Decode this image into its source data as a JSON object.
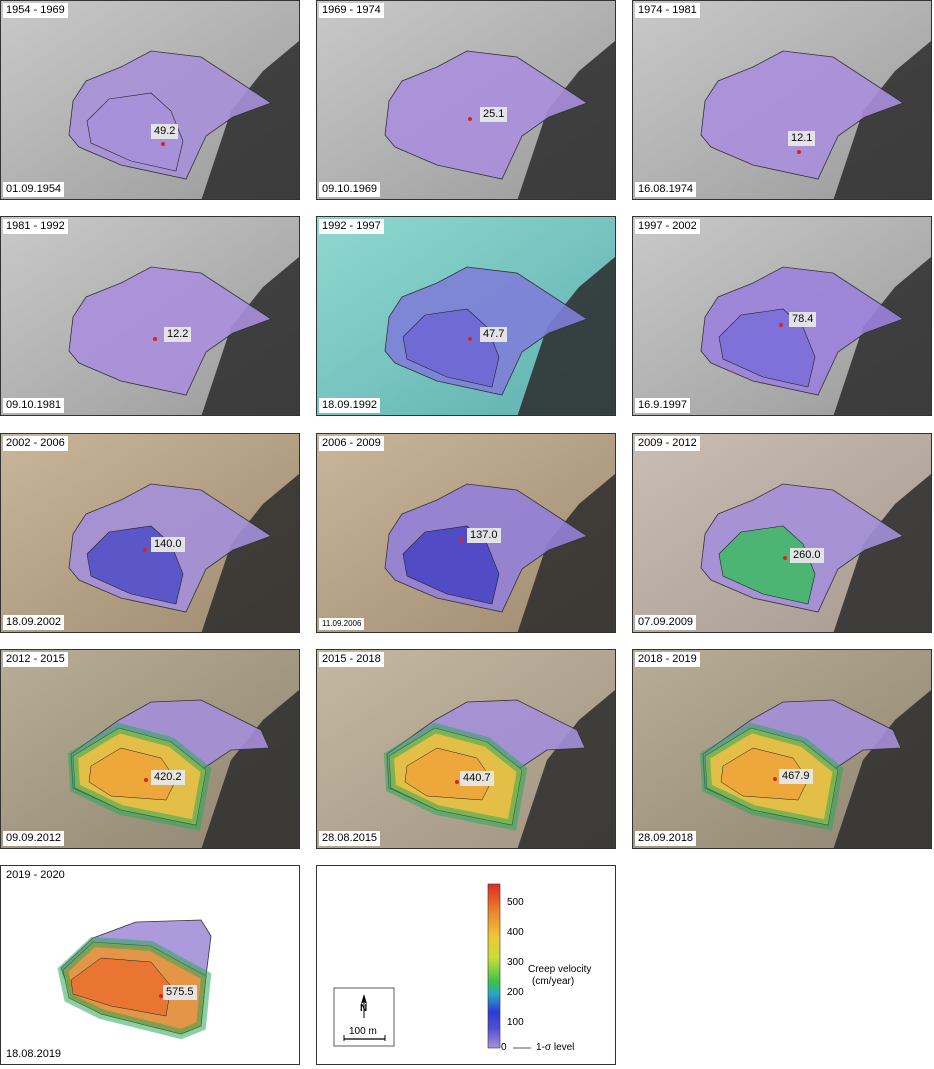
{
  "panels": [
    {
      "period": "1954 - 1969",
      "date": "01.09.1954",
      "value": "49.2",
      "bg": "gray",
      "fill": [
        "#a790d8",
        "#a790d8"
      ],
      "labelPos": [
        150,
        130
      ],
      "dot": [
        162,
        143
      ],
      "contours": [
        "25",
        "25"
      ]
    },
    {
      "period": "1969 - 1974",
      "date": "09.10.1969",
      "value": "25.1",
      "bg": "gray",
      "fill": [
        "#a98fdc"
      ],
      "labelPos": [
        163,
        113
      ],
      "dot": [
        153,
        118
      ],
      "contours": []
    },
    {
      "period": "1974 - 1981",
      "date": "16.08.1974",
      "value": "12.1",
      "bg": "gray",
      "fill": [
        "#a98fdc"
      ],
      "labelPos": [
        155,
        137
      ],
      "dot": [
        166,
        151
      ],
      "contours": [
        "3.7"
      ]
    },
    {
      "period": "1981 - 1992",
      "date": "09.10.1981",
      "value": "12.2",
      "bg": "gray",
      "fill": [
        "#a98fdc"
      ],
      "labelPos": [
        163,
        117
      ],
      "dot": [
        154,
        122
      ],
      "contours": []
    },
    {
      "period": "1992 - 1997",
      "date": "18.09.1992",
      "value": "47.7",
      "bg": "cyan",
      "fill": [
        "#7e7ed8",
        "#6d6ad4"
      ],
      "labelPos": [
        163,
        117
      ],
      "dot": [
        153,
        122
      ],
      "contours": [
        "25",
        "25"
      ]
    },
    {
      "period": "1997 - 2002",
      "date": "16.9.1997",
      "value": "78.4",
      "bg": "gray",
      "fill": [
        "#9b82dc",
        "#7e6fd9"
      ],
      "labelPos": [
        156,
        102
      ],
      "dot": [
        148,
        108
      ],
      "contours": [
        "25",
        "50",
        "25"
      ]
    },
    {
      "period": "2002 - 2006",
      "date": "18.09.2002",
      "value": "140.0",
      "bg": "tan",
      "fill": [
        "#a48fd9",
        "#5552c8"
      ],
      "labelPos": [
        150,
        110
      ],
      "dot": [
        144,
        116
      ],
      "contours": [
        "25",
        "100"
      ]
    },
    {
      "period": "2006 - 2009",
      "date": "11.09.2006",
      "value": "137.0",
      "bg": "tan",
      "fill": [
        "#9480d8",
        "#4b47c4"
      ],
      "labelPos": [
        150,
        101
      ],
      "dot": [
        145,
        106
      ],
      "contours": [
        "25",
        "100"
      ]
    },
    {
      "period": "2009 - 2012",
      "date": "07.09.2009",
      "value": "260.0",
      "bg": "sand",
      "fill": [
        "#a48fd9",
        "#45b86a"
      ],
      "labelPos": [
        157,
        121
      ],
      "dot": [
        152,
        124
      ],
      "contours": [
        "100",
        "200",
        "250"
      ]
    },
    {
      "period": "2012 - 2015",
      "date": "09.09.2012",
      "value": "420.2",
      "bg": "tan2",
      "fill": [
        "#a48fd9",
        "#e8c33c"
      ],
      "labelPos": [
        150,
        127
      ],
      "dot": [
        145,
        130
      ],
      "contours": [
        "200",
        "300",
        "350",
        "400"
      ]
    },
    {
      "period": "2015 - 2018",
      "date": "28.08.2015",
      "value": "440.7",
      "bg": "sand2",
      "fill": [
        "#a48fd9",
        "#e8c33c"
      ],
      "labelPos": [
        143,
        128
      ],
      "dot": [
        140,
        132
      ],
      "contours": [
        "200",
        "300",
        "400"
      ]
    },
    {
      "period": "2018 - 2019",
      "date": "28.09.2018",
      "value": "467.9",
      "bg": "tan2",
      "fill": [
        "#a48fd9",
        "#e8c33c"
      ],
      "labelPos": [
        146,
        126
      ],
      "dot": [
        142,
        129
      ],
      "contours": [
        "200",
        "300",
        "350",
        "400",
        "25"
      ]
    },
    {
      "period": "2019 - 2020",
      "date": "18.08.2019",
      "value": "575.5",
      "bg": "drone",
      "fill": [
        "#a48fd9",
        "#e7963a"
      ],
      "labelPos": [
        162,
        126
      ],
      "dot": [
        160,
        130
      ],
      "contours": [
        "200",
        "400",
        "500"
      ]
    }
  ],
  "legend": {
    "colorbar_colors": [
      "#a890dc",
      "#3b3bd0",
      "#34c0c0",
      "#40c040",
      "#e8e03a",
      "#e89a30",
      "#e03a20"
    ],
    "ticks": [
      "0",
      "100",
      "200",
      "300",
      "400",
      "500"
    ],
    "title_line1": "Creep velocity",
    "title_line2": "(cm/year)",
    "sigma_label": "1-σ level",
    "north_label": "N",
    "scale_label": "100 m"
  }
}
